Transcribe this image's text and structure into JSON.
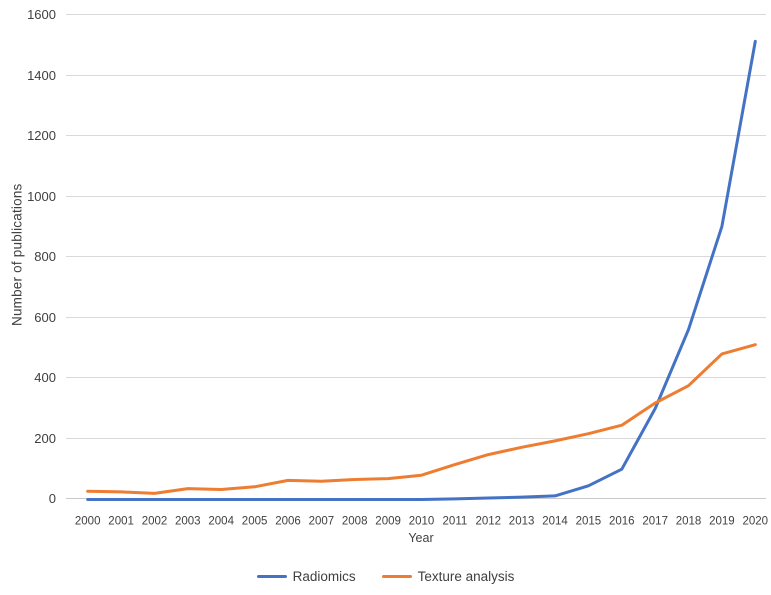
{
  "chart_data": {
    "type": "line",
    "title": "",
    "xlabel": "Year",
    "ylabel": "Number of publications",
    "ylim": [
      0,
      1600
    ],
    "ytick_step": 200,
    "y_tick_labels": [
      "0",
      "200",
      "400",
      "600",
      "800",
      "1000",
      "1200",
      "1400",
      "1600"
    ],
    "grid": true,
    "legend_position": "bottom",
    "categories": [
      "2000",
      "2001",
      "2002",
      "2003",
      "2004",
      "2005",
      "2006",
      "2007",
      "2008",
      "2009",
      "2010",
      "2011",
      "2012",
      "2013",
      "2014",
      "2015",
      "2016",
      "2017",
      "2018",
      "2019",
      "2020"
    ],
    "series": [
      {
        "name": "Radiomics",
        "color": "#4472C4",
        "values": [
          0,
          0,
          0,
          0,
          0,
          0,
          0,
          0,
          0,
          0,
          0,
          2,
          5,
          8,
          12,
          45,
          100,
          300,
          560,
          900,
          1510
        ]
      },
      {
        "name": "Texture analysis",
        "color": "#ED7D31",
        "values": [
          27,
          25,
          20,
          36,
          33,
          42,
          63,
          60,
          66,
          69,
          80,
          115,
          148,
          172,
          193,
          217,
          245,
          318,
          375,
          480,
          510
        ]
      }
    ],
    "colors": {
      "gridline": "#D9D9D9",
      "axis_line": "#C9C9C9",
      "tick_text": "#404040"
    }
  }
}
